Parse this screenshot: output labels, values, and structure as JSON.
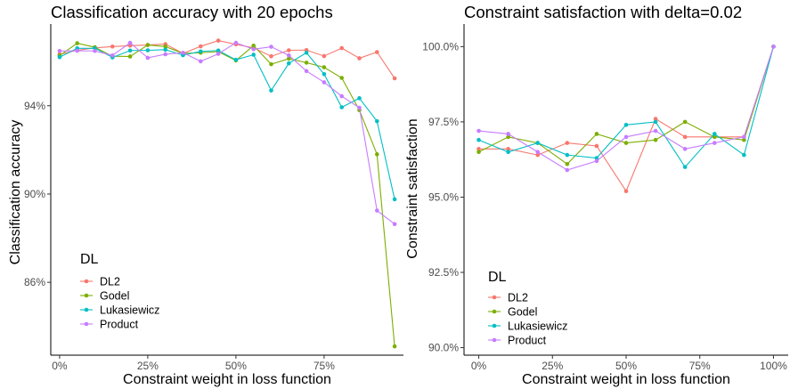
{
  "colors": {
    "DL2": "#F8766D",
    "Godel": "#7CAE00",
    "Lukasiewicz": "#00BFC4",
    "Product": "#C77CFF"
  },
  "chart_data": [
    {
      "type": "line",
      "title": "Classification accuracy with 20 epochs",
      "xlabel": "Constraint weight in loss function",
      "ylabel": "Classification accuracy",
      "xlim": [
        -0.025,
        0.975
      ],
      "ylim": [
        0.827,
        0.977
      ],
      "x_ticks": [
        0,
        0.25,
        0.5,
        0.75
      ],
      "x_tick_labels": [
        "0%",
        "25%",
        "50%",
        "75%"
      ],
      "y_ticks": [
        0.86,
        0.9,
        0.94
      ],
      "y_tick_labels": [
        "86%",
        "90%",
        "94%"
      ],
      "grid": false,
      "legend": {
        "title": "DL",
        "position": "bottom-left-inside",
        "labels": [
          "DL2",
          "Godel",
          "Lukasiewicz",
          "Product"
        ]
      },
      "x": [
        0,
        0.05,
        0.1,
        0.15,
        0.2,
        0.25,
        0.3,
        0.35,
        0.4,
        0.45,
        0.5,
        0.55,
        0.6,
        0.65,
        0.7,
        0.75,
        0.8,
        0.85,
        0.9,
        0.95
      ],
      "series": [
        {
          "name": "DL2",
          "values": [
            0.9633,
            0.9651,
            0.9662,
            0.9668,
            0.9672,
            0.9675,
            0.9679,
            0.9637,
            0.9669,
            0.9695,
            0.9678,
            0.9662,
            0.9624,
            0.9651,
            0.9652,
            0.9625,
            0.9661,
            0.9615,
            0.9643,
            0.9524
          ]
        },
        {
          "name": "Godel",
          "values": [
            0.9627,
            0.9683,
            0.9665,
            0.9624,
            0.9623,
            0.9675,
            0.9668,
            0.9637,
            0.964,
            0.9645,
            0.9605,
            0.9672,
            0.9588,
            0.9613,
            0.9595,
            0.9574,
            0.9526,
            0.938,
            0.918,
            0.831
          ]
        },
        {
          "name": "Lukasiewicz",
          "values": [
            0.962,
            0.966,
            0.966,
            0.9619,
            0.965,
            0.9651,
            0.9654,
            0.9629,
            0.9646,
            0.965,
            0.9608,
            0.9631,
            0.9469,
            0.9592,
            0.964,
            0.9543,
            0.9393,
            0.9434,
            0.933,
            0.8976
          ]
        },
        {
          "name": "Product",
          "values": [
            0.9648,
            0.9649,
            0.9648,
            0.9628,
            0.9685,
            0.9617,
            0.9633,
            0.964,
            0.9601,
            0.9635,
            0.9685,
            0.9656,
            0.9667,
            0.9628,
            0.9557,
            0.9506,
            0.9443,
            0.9391,
            0.8925,
            0.8864
          ]
        }
      ]
    },
    {
      "type": "line",
      "title": "Constraint satisfaction with delta=0.02",
      "xlabel": "Constraint weight in loss function",
      "ylabel": "Constraint satisfaction",
      "xlim": [
        -0.05,
        1.05
      ],
      "ylim": [
        0.8975,
        1.0075
      ],
      "x_ticks": [
        0,
        0.25,
        0.5,
        0.75,
        1.0
      ],
      "x_tick_labels": [
        "0%",
        "25%",
        "50%",
        "75%",
        "100%"
      ],
      "y_ticks": [
        0.9,
        0.925,
        0.95,
        0.975,
        1.0
      ],
      "y_tick_labels": [
        "90.0%",
        "92.5%",
        "95.0%",
        "97.5%",
        "100.0%"
      ],
      "grid": false,
      "legend": {
        "title": "DL",
        "position": "bottom-left-inside",
        "labels": [
          "DL2",
          "Godel",
          "Lukasiewicz",
          "Product"
        ]
      },
      "x": [
        0,
        0.1,
        0.2,
        0.3,
        0.4,
        0.5,
        0.6,
        0.7,
        0.8,
        0.9,
        1.0
      ],
      "series": [
        {
          "name": "DL2",
          "values": [
            0.966,
            0.966,
            0.964,
            0.968,
            0.967,
            0.952,
            0.976,
            0.97,
            0.97,
            0.97,
            1.0
          ]
        },
        {
          "name": "Godel",
          "values": [
            0.965,
            0.97,
            0.968,
            0.961,
            0.971,
            0.968,
            0.969,
            0.975,
            0.97,
            0.969,
            1.0
          ]
        },
        {
          "name": "Lukasiewicz",
          "values": [
            0.969,
            0.965,
            0.968,
            0.964,
            0.963,
            0.974,
            0.975,
            0.96,
            0.971,
            0.964,
            1.0
          ]
        },
        {
          "name": "Product",
          "values": [
            0.972,
            0.971,
            0.965,
            0.959,
            0.962,
            0.97,
            0.972,
            0.966,
            0.968,
            0.97,
            1.0
          ]
        }
      ]
    }
  ]
}
